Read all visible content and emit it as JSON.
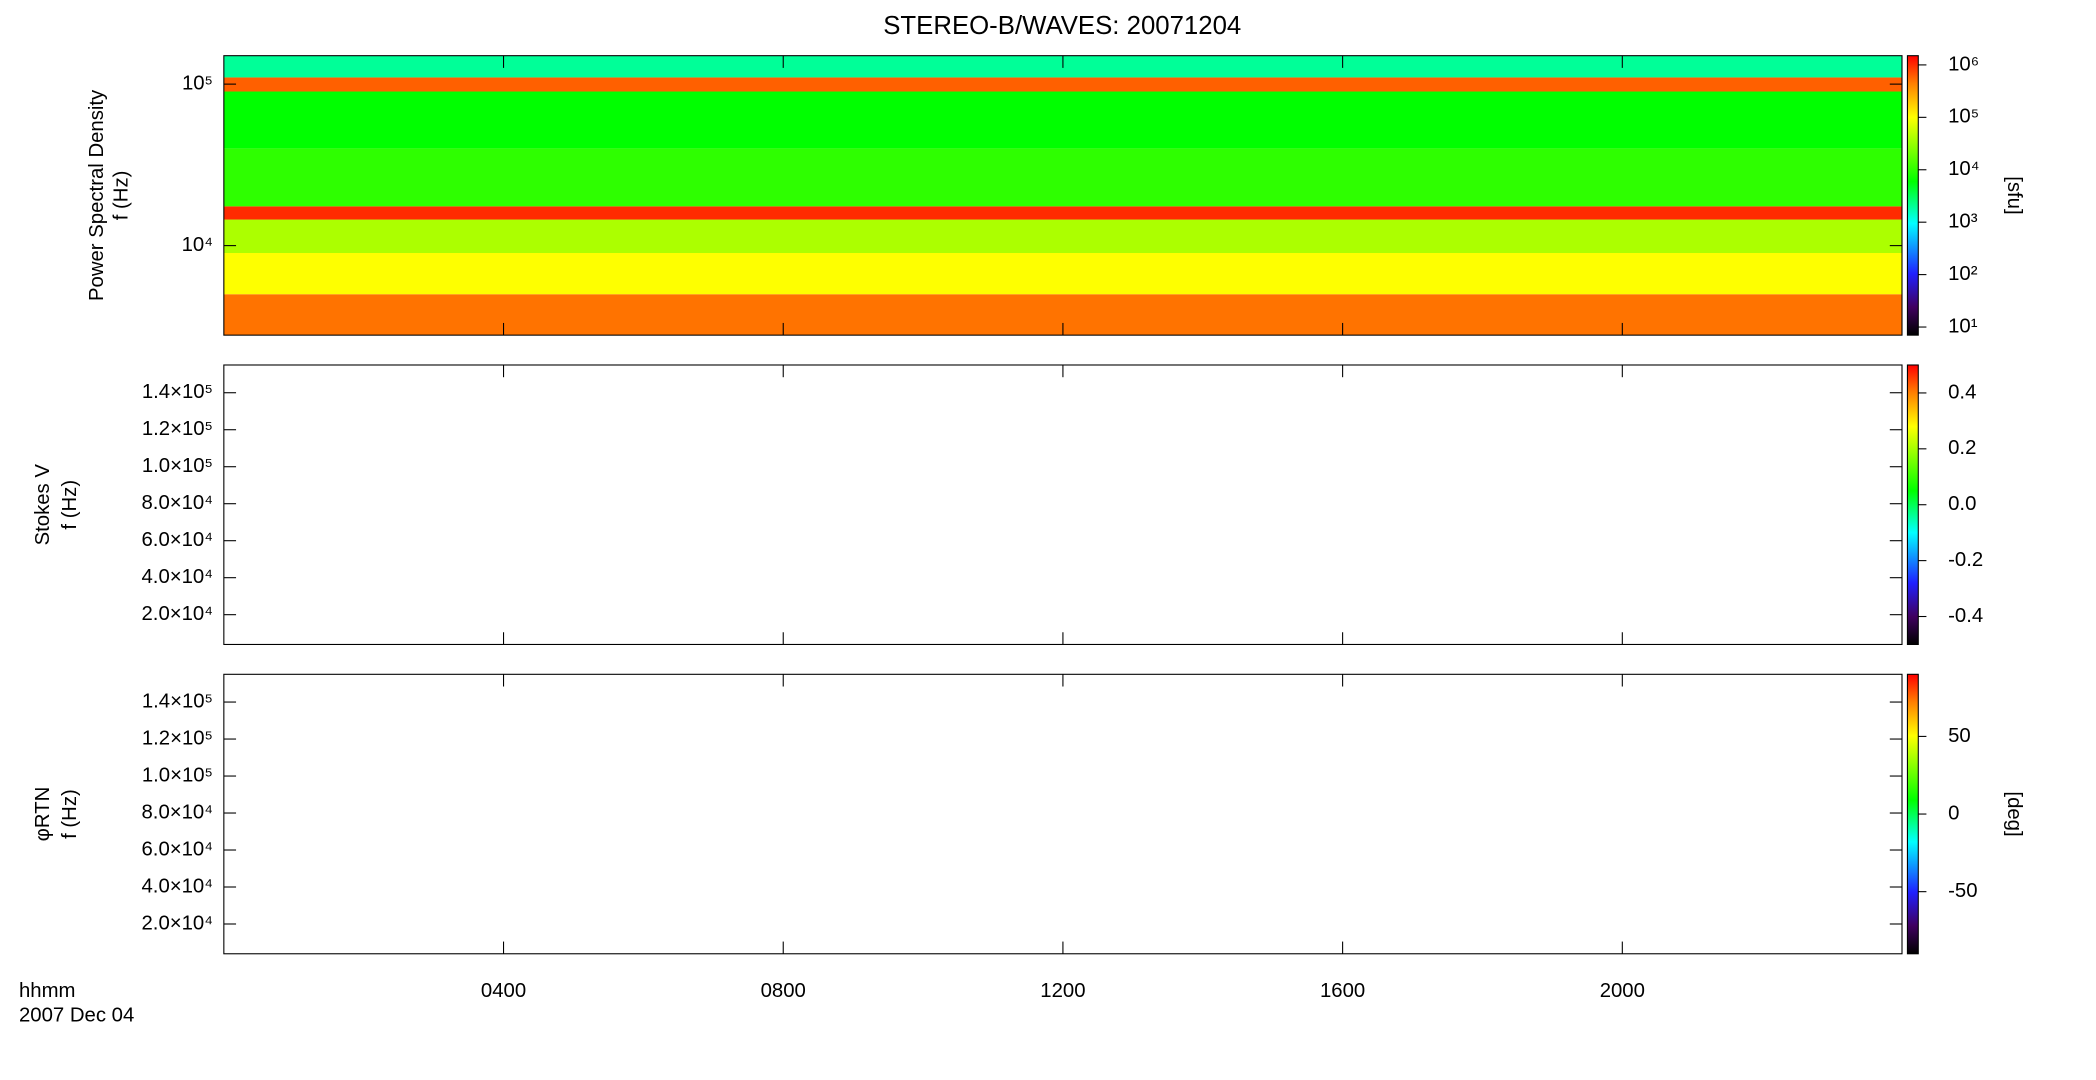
{
  "title": "STEREO-B/WAVES: 20071204",
  "time_axis": {
    "xlim": [
      0,
      24
    ],
    "xticks": [
      {
        "value": 4,
        "label": "0400"
      },
      {
        "value": 8,
        "label": "0800"
      },
      {
        "value": 12,
        "label": "1200"
      },
      {
        "value": 16,
        "label": "1600"
      },
      {
        "value": 20,
        "label": "2000"
      }
    ],
    "label": [
      "hhmm",
      "2007 Dec 04"
    ]
  },
  "chart_data": [
    {
      "type": "heatmap",
      "ylabel": [
        "Power Spectral Density",
        "f (Hz)"
      ],
      "ylog": true,
      "ylim": [
        2790,
        150000
      ],
      "yticks": [
        {
          "value": 10000,
          "label": "10⁴"
        },
        {
          "value": 100000,
          "label": "10⁵"
        }
      ],
      "y_edges": [
        2790,
        5000,
        9000,
        14500,
        17500,
        40000,
        90000,
        110000,
        150000
      ],
      "values": [
        500000,
        100000,
        40000,
        1000000,
        10000,
        6000,
        600000,
        2000
      ],
      "colorbar": {
        "log": true,
        "lim": [
          7,
          1500000
        ],
        "label": "[sfu]",
        "ticks": [
          {
            "value": 10,
            "label": "10¹"
          },
          {
            "value": 100,
            "label": "10²"
          },
          {
            "value": 1000,
            "label": "10³"
          },
          {
            "value": 10000,
            "label": "10⁴"
          },
          {
            "value": 100000,
            "label": "10⁵"
          },
          {
            "value": 1000000,
            "label": "10⁶"
          }
        ]
      }
    },
    {
      "type": "heatmap",
      "ylabel": [
        "Stokes V",
        "f (Hz)"
      ],
      "ylog": false,
      "ylim": [
        3900,
        155000
      ],
      "yticks": [
        {
          "value": 20000,
          "label": "2.0×10⁴"
        },
        {
          "value": 40000,
          "label": "4.0×10⁴"
        },
        {
          "value": 60000,
          "label": "6.0×10⁴"
        },
        {
          "value": 80000,
          "label": "8.0×10⁴"
        },
        {
          "value": 100000,
          "label": "1.0×10⁵"
        },
        {
          "value": 120000,
          "label": "1.2×10⁵"
        },
        {
          "value": 140000,
          "label": "1.4×10⁵"
        }
      ],
      "colorbar": {
        "log": false,
        "lim": [
          -0.5,
          0.5
        ],
        "ticks": [
          {
            "value": -0.4,
            "label": "-0.4"
          },
          {
            "value": -0.2,
            "label": "-0.2"
          },
          {
            "value": 0,
            "label": "0.0"
          },
          {
            "value": 0.2,
            "label": "0.2"
          },
          {
            "value": 0.4,
            "label": "0.4"
          }
        ]
      }
    },
    {
      "type": "heatmap",
      "ylabel": [
        "φRTN",
        "f (Hz)"
      ],
      "ylog": false,
      "ylim": [
        3900,
        155000
      ],
      "yticks": [
        {
          "value": 20000,
          "label": "2.0×10⁴"
        },
        {
          "value": 40000,
          "label": "4.0×10⁴"
        },
        {
          "value": 60000,
          "label": "6.0×10⁴"
        },
        {
          "value": 80000,
          "label": "8.0×10⁴"
        },
        {
          "value": 100000,
          "label": "1.0×10⁵"
        },
        {
          "value": 120000,
          "label": "1.2×10⁵"
        },
        {
          "value": 140000,
          "label": "1.4×10⁵"
        }
      ],
      "colorbar": {
        "log": false,
        "lim": [
          -90,
          90
        ],
        "label": "[deg]",
        "ticks": [
          -50,
          0,
          50
        ]
      }
    }
  ]
}
